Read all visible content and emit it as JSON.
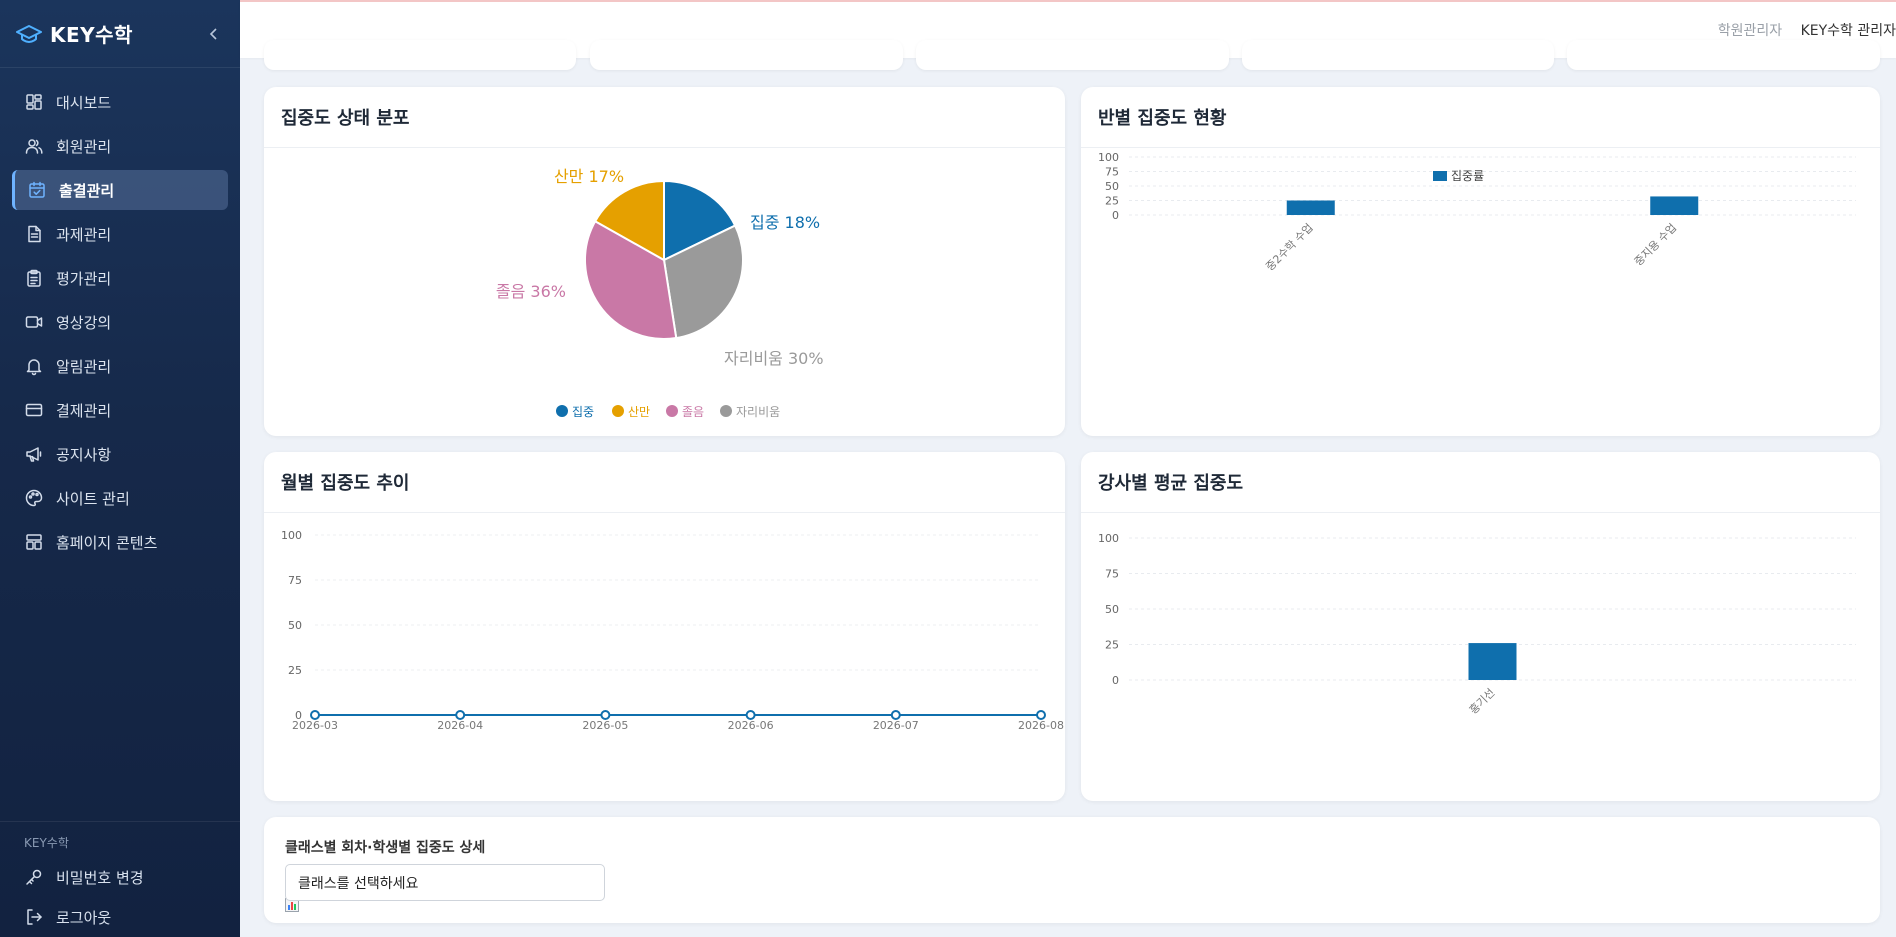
{
  "brand": {
    "name": "KEY수학"
  },
  "sidebar": {
    "items": [
      {
        "label": "대시보드",
        "icon": "dashboard-icon"
      },
      {
        "label": "회원관리",
        "icon": "users-icon"
      },
      {
        "label": "출결관리",
        "icon": "calendar-check-icon",
        "active": true
      },
      {
        "label": "과제관리",
        "icon": "document-icon"
      },
      {
        "label": "평가관리",
        "icon": "clipboard-icon"
      },
      {
        "label": "영상강의",
        "icon": "video-icon"
      },
      {
        "label": "알림관리",
        "icon": "bell-icon"
      },
      {
        "label": "결제관리",
        "icon": "card-icon"
      },
      {
        "label": "공지사항",
        "icon": "megaphone-icon"
      },
      {
        "label": "사이트 관리",
        "icon": "palette-icon"
      },
      {
        "label": "홈페이지 콘텐츠",
        "icon": "layout-icon"
      }
    ],
    "footer_caption": "KEY수학",
    "footer_items": [
      {
        "label": "비밀번호 변경",
        "icon": "key-icon"
      },
      {
        "label": "로그아웃",
        "icon": "logout-icon"
      }
    ]
  },
  "header": {
    "role": "학원관리자",
    "user": "KEY수학 관리자"
  },
  "cards": {
    "focus_distribution": {
      "title": "집중도 상태 분포"
    },
    "class_focus": {
      "title": "반별 집중도 현황"
    },
    "monthly_trend": {
      "title": "월별 집중도 추이"
    },
    "teacher_focus": {
      "title": "강사별 평균 집중도"
    },
    "detail": {
      "title": "클래스별 회차·학생별 집중도 상세",
      "select_value": "클래스를 선택하세요"
    }
  },
  "colors": {
    "focus": "#0f6fad",
    "distracted": "#e5a000",
    "drowsy": "#c978a6",
    "away": "#9a9a9a",
    "bar": "#0f6fad"
  },
  "chart_data": [
    {
      "type": "pie",
      "categories": [
        "집중",
        "산만",
        "졸음",
        "자리비움"
      ],
      "values": [
        18,
        17,
        36,
        30
      ],
      "data_labels": [
        "집중 18%",
        "산만 17%",
        "졸음 36%",
        "자리비움 30%"
      ],
      "legend": "bottom"
    },
    {
      "type": "bar",
      "categories": [
        "중2수학 수업",
        "중지용 수업"
      ],
      "series": [
        {
          "name": "집중률",
          "values": [
            25,
            32
          ]
        }
      ],
      "yticks": [
        0,
        25,
        50,
        75,
        100
      ],
      "ylim": [
        0,
        100
      ],
      "legend": "top"
    },
    {
      "type": "line",
      "categories": [
        "2026-03",
        "2026-04",
        "2026-05",
        "2026-06",
        "2026-07",
        "2026-08"
      ],
      "values": [
        0,
        0,
        0,
        0,
        0,
        0
      ],
      "yticks": [
        0,
        25,
        50,
        75,
        100
      ],
      "ylim": [
        0,
        100
      ]
    },
    {
      "type": "bar",
      "categories": [
        "홍기선"
      ],
      "values": [
        26
      ],
      "yticks": [
        0,
        25,
        50,
        75,
        100
      ],
      "ylim": [
        0,
        100
      ]
    }
  ]
}
